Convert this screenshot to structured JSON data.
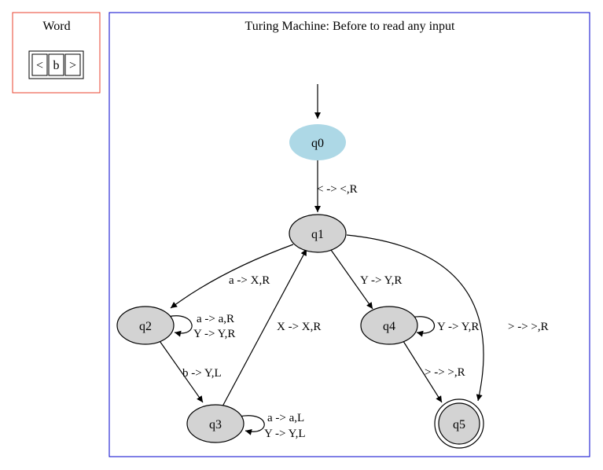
{
  "word_panel": {
    "title": "Word",
    "cells": [
      "<",
      "b",
      ">"
    ],
    "border_color": "#e8412c"
  },
  "machine_panel": {
    "title": "Turing Machine: Before to read any input",
    "border_color": "#0000cc"
  },
  "states": [
    {
      "id": "q0",
      "label": "q0",
      "fill": "#add8e6",
      "kind": "initial"
    },
    {
      "id": "q1",
      "label": "q1",
      "fill": "#d3d3d3",
      "kind": "normal"
    },
    {
      "id": "q2",
      "label": "q2",
      "fill": "#d3d3d3",
      "kind": "normal"
    },
    {
      "id": "q3",
      "label": "q3",
      "fill": "#d3d3d3",
      "kind": "normal"
    },
    {
      "id": "q4",
      "label": "q4",
      "fill": "#d3d3d3",
      "kind": "normal"
    },
    {
      "id": "q5",
      "label": "q5",
      "fill": "#d3d3d3",
      "kind": "accepting"
    }
  ],
  "transitions": [
    {
      "from": "q0",
      "to": "q1",
      "labels": [
        "< -> <,R"
      ]
    },
    {
      "from": "q1",
      "to": "q2",
      "labels": [
        "a -> X,R"
      ]
    },
    {
      "from": "q1",
      "to": "q4",
      "labels": [
        "Y -> Y,R"
      ]
    },
    {
      "from": "q1",
      "to": "q5",
      "labels": [
        "> -> >,R"
      ]
    },
    {
      "from": "q2",
      "to": "q2",
      "labels": [
        "a -> a,R",
        "Y -> Y,R"
      ]
    },
    {
      "from": "q2",
      "to": "q3",
      "labels": [
        "b -> Y,L"
      ]
    },
    {
      "from": "q3",
      "to": "q1",
      "labels": [
        "X -> X,R"
      ]
    },
    {
      "from": "q3",
      "to": "q3",
      "labels": [
        "a -> a,L",
        "Y -> Y,L"
      ]
    },
    {
      "from": "q4",
      "to": "q4",
      "labels": [
        "Y -> Y,R"
      ]
    },
    {
      "from": "q4",
      "to": "q5",
      "labels": [
        "> -> >,R"
      ]
    }
  ]
}
